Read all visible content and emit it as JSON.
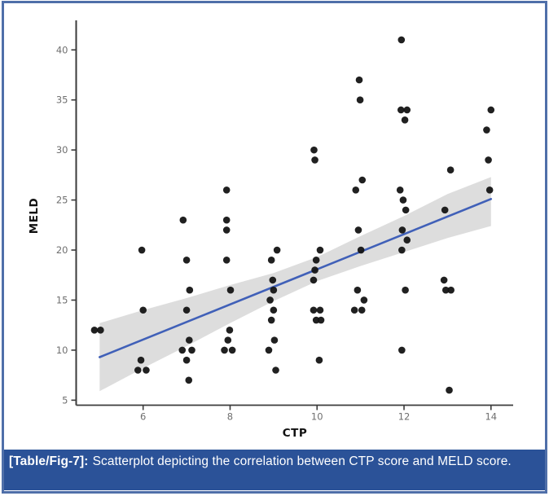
{
  "figure": {
    "background": "#ffffff",
    "border_color": "#4f6fa9",
    "caption": {
      "tag": "[Table/Fig-7]:",
      "text": "Scatterplot depicting the correlation between CTP score and MELD score.",
      "bg_color": "#2b5298",
      "text_color": "#ffffff"
    }
  },
  "chart_data": {
    "type": "scatter",
    "title": "",
    "xlabel": "CTP",
    "ylabel": "MELD",
    "xlim": [
      4.46,
      14.51
    ],
    "ylim": [
      4.5,
      42.95
    ],
    "x_ticks": [
      6,
      8,
      10,
      12,
      14
    ],
    "y_ticks": [
      5,
      10,
      15,
      20,
      25,
      30,
      35,
      40
    ],
    "grid": false,
    "legend": "none",
    "point_color": "#141414",
    "points": [
      [
        4.88,
        12
      ],
      [
        5.02,
        12
      ],
      [
        5.97,
        20
      ],
      [
        6.0,
        14
      ],
      [
        5.95,
        9
      ],
      [
        5.88,
        8
      ],
      [
        6.07,
        8
      ],
      [
        6.92,
        23
      ],
      [
        7.0,
        19
      ],
      [
        7.07,
        16
      ],
      [
        7.0,
        14
      ],
      [
        7.06,
        11
      ],
      [
        6.9,
        10
      ],
      [
        7.12,
        10
      ],
      [
        7.0,
        9
      ],
      [
        7.05,
        7
      ],
      [
        7.92,
        26
      ],
      [
        7.92,
        23
      ],
      [
        7.92,
        22
      ],
      [
        7.92,
        19
      ],
      [
        8.01,
        16
      ],
      [
        7.99,
        12
      ],
      [
        7.95,
        11
      ],
      [
        7.87,
        10
      ],
      [
        8.05,
        10
      ],
      [
        9.08,
        20
      ],
      [
        8.95,
        19
      ],
      [
        8.98,
        17
      ],
      [
        9.0,
        16
      ],
      [
        8.92,
        15
      ],
      [
        9.0,
        14
      ],
      [
        8.95,
        13
      ],
      [
        9.02,
        11
      ],
      [
        8.89,
        10
      ],
      [
        9.05,
        8
      ],
      [
        9.93,
        30
      ],
      [
        9.95,
        29
      ],
      [
        10.07,
        20
      ],
      [
        9.98,
        19
      ],
      [
        9.95,
        18
      ],
      [
        9.92,
        17
      ],
      [
        9.92,
        14
      ],
      [
        10.07,
        14
      ],
      [
        9.98,
        13
      ],
      [
        10.09,
        13
      ],
      [
        10.05,
        9
      ],
      [
        10.97,
        37
      ],
      [
        10.99,
        35
      ],
      [
        11.04,
        27
      ],
      [
        10.89,
        26
      ],
      [
        10.95,
        22
      ],
      [
        11.01,
        20
      ],
      [
        10.93,
        16
      ],
      [
        11.08,
        15
      ],
      [
        10.86,
        14
      ],
      [
        11.03,
        14
      ],
      [
        11.94,
        41
      ],
      [
        11.93,
        34
      ],
      [
        12.07,
        34
      ],
      [
        12.02,
        33
      ],
      [
        11.91,
        26
      ],
      [
        11.98,
        25
      ],
      [
        12.04,
        24
      ],
      [
        11.96,
        22
      ],
      [
        12.07,
        21
      ],
      [
        11.95,
        20
      ],
      [
        12.03,
        16
      ],
      [
        11.95,
        10
      ],
      [
        13.07,
        28
      ],
      [
        12.94,
        24
      ],
      [
        12.92,
        17
      ],
      [
        12.96,
        16
      ],
      [
        13.08,
        16
      ],
      [
        13.04,
        6
      ],
      [
        14.0,
        34
      ],
      [
        13.9,
        32
      ],
      [
        13.94,
        29
      ],
      [
        13.97,
        26
      ]
    ],
    "regression_line": {
      "x1": 5,
      "y1": 9.3,
      "x2": 14,
      "y2": 25.1,
      "color": "#4060b8"
    },
    "ci_band": {
      "x": [
        5,
        6,
        7,
        8,
        9,
        10,
        11,
        12,
        13,
        14
      ],
      "upper": [
        12.7,
        14.0,
        15.2,
        16.5,
        17.7,
        19.3,
        21.4,
        23.4,
        25.6,
        27.3
      ],
      "lower": [
        5.9,
        8.2,
        10.4,
        12.7,
        14.9,
        16.9,
        18.4,
        19.8,
        21.2,
        22.4
      ],
      "color": "#d9d9d9"
    }
  }
}
